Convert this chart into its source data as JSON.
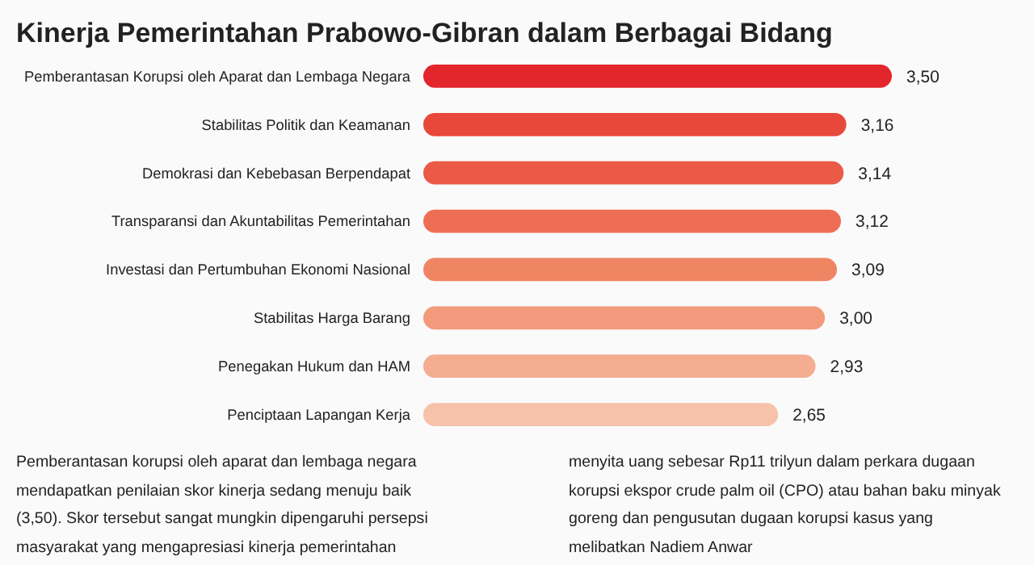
{
  "chart_data": {
    "type": "bar",
    "orientation": "horizontal",
    "data_labels": true,
    "title": "Kinerja Pemerintahan Prabowo-Gibran dalam Berbagai Bidang",
    "categories": [
      "Pemberantasan Korupsi oleh Aparat dan Lembaga Negara",
      "Stabilitas Politik dan Keamanan",
      "Demokrasi dan Kebebasan Berpendapat",
      "Transparansi dan Akuntabilitas Pemerintahan",
      "Investasi dan Pertumbuhan Ekonomi Nasional",
      "Stabilitas Harga Barang",
      "Penegakan Hukum dan HAM",
      "Penciptaan Lapangan Kerja"
    ],
    "values": [
      3.5,
      3.16,
      3.14,
      3.12,
      3.09,
      3.0,
      2.93,
      2.65
    ],
    "value_labels": [
      "3,50",
      "3,16",
      "3,14",
      "3,12",
      "3,09",
      "3,00",
      "2,93",
      "2,65"
    ],
    "colors": [
      "#e2262b",
      "#e8483a",
      "#eb5a47",
      "#ee6e55",
      "#f08564",
      "#f29a7b",
      "#f4ad91",
      "#f6c2a9"
    ],
    "annotations": [
      "Pemberantasan korupsi oleh aparat dan lembaga negara mendapatkan penilaian skor kinerja sedang menuju baik (3,50). Skor tersebut sangat mungkin dipengaruhi persepsi masyarakat yang mengapresiasi kinerja pemerintahan",
      "menyita uang sebesar Rp11 trilyun dalam perkara dugaan korupsi ekspor crude palm oil (CPO) atau bahan baku minyak goreng dan pengusutan dugaan korupsi kasus yang melibatkan Nadiem Anwar"
    ]
  }
}
